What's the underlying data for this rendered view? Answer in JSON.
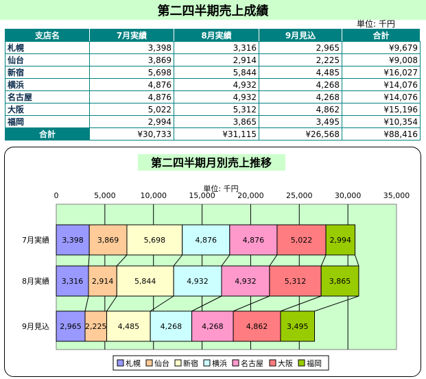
{
  "report_title": "第二四半期売上成績",
  "unit_label": "単位: 千円",
  "table": {
    "headers": [
      "支店名",
      "7月実績",
      "8月実績",
      "9月見込",
      "合計"
    ],
    "rows": [
      [
        "札幌",
        "3,398",
        "3,316",
        "2,965",
        "¥9,679"
      ],
      [
        "仙台",
        "3,869",
        "2,914",
        "2,225",
        "¥9,008"
      ],
      [
        "新宿",
        "5,698",
        "5,844",
        "4,485",
        "¥16,027"
      ],
      [
        "横浜",
        "4,876",
        "4,932",
        "4,268",
        "¥14,076"
      ],
      [
        "名古屋",
        "4,876",
        "4,932",
        "4,268",
        "¥14,076"
      ],
      [
        "大阪",
        "5,022",
        "5,312",
        "4,862",
        "¥15,196"
      ],
      [
        "福岡",
        "2,994",
        "3,865",
        "3,495",
        "¥10,354"
      ],
      [
        "合計",
        "¥30,733",
        "¥31,115",
        "¥26,568",
        "¥88,416"
      ]
    ]
  },
  "chart_data": {
    "type": "bar",
    "stacked": true,
    "orientation": "horizontal",
    "title": "第二四半期月別売上推移",
    "unit": "単位: 千円",
    "categories": [
      "7月実績",
      "8月実績",
      "9月見込"
    ],
    "series": [
      {
        "name": "札幌",
        "values": [
          3398,
          3316,
          2965
        ],
        "color": "#9999ff"
      },
      {
        "name": "仙台",
        "values": [
          3869,
          2914,
          2225
        ],
        "color": "#ffcc99"
      },
      {
        "name": "新宿",
        "values": [
          5698,
          5844,
          4485
        ],
        "color": "#ffffcc"
      },
      {
        "name": "横浜",
        "values": [
          4876,
          4932,
          4268
        ],
        "color": "#ccffff"
      },
      {
        "name": "名古屋",
        "values": [
          4876,
          4932,
          4268
        ],
        "color": "#ff99cc"
      },
      {
        "name": "大阪",
        "values": [
          5022,
          5312,
          4862
        ],
        "color": "#ff7c80"
      },
      {
        "name": "福岡",
        "values": [
          2994,
          3865,
          3495
        ],
        "color": "#99cc00"
      }
    ],
    "xlim": [
      0,
      35000
    ],
    "xticks": [
      "0",
      "5,000",
      "10,000",
      "15,000",
      "20,000",
      "25,000",
      "30,000",
      "35,000"
    ],
    "grid": true,
    "series_lines": true,
    "legend_position": "bottom",
    "plot_background": "#ccffcc"
  }
}
